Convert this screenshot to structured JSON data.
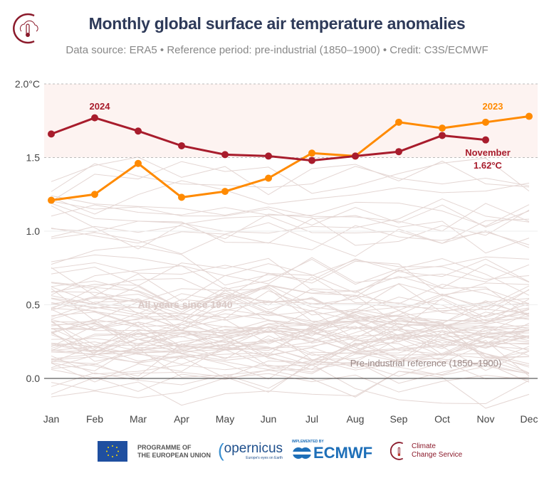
{
  "header": {
    "title": "Monthly global surface air temperature anomalies",
    "subtitle": "Data source: ERA5 • Reference period: pre-industrial (1850–1900) • Credit: C3S/ECMWF"
  },
  "chart_data": {
    "type": "line",
    "title": "Monthly global surface air temperature anomalies",
    "categories": [
      "Jan",
      "Feb",
      "Mar",
      "Apr",
      "May",
      "Jun",
      "Jul",
      "Aug",
      "Sep",
      "Oct",
      "Nov",
      "Dec"
    ],
    "yticks": [
      "0.0",
      "0.5",
      "1.0",
      "1.5",
      "2.0°C"
    ],
    "ylim": [
      -0.2,
      2.0
    ],
    "grid": true,
    "highlight_band": [
      1.5,
      2.0
    ],
    "series": [
      {
        "name": "2024",
        "color": "#a81c2c",
        "values": [
          1.66,
          1.77,
          1.68,
          1.58,
          1.52,
          1.51,
          1.48,
          1.51,
          1.54,
          1.65,
          1.62,
          null
        ]
      },
      {
        "name": "2023",
        "color": "#ff8a00",
        "values": [
          1.21,
          1.25,
          1.46,
          1.23,
          1.27,
          1.36,
          1.53,
          1.51,
          1.74,
          1.7,
          1.74,
          1.78
        ]
      }
    ],
    "annotations": {
      "background_years": "All years since 1940",
      "reference": "Pre-industrial reference (1850–1900)",
      "latest_month": "November",
      "latest_value": "1.62°C"
    }
  },
  "footer": {
    "eu_line1": "PROGRAMME OF",
    "eu_line2": "THE EUROPEAN UNION",
    "copernicus": "opernicus",
    "copernicus_tag": "Europe's eyes on Earth",
    "ecmwf_tag": "IMPLEMENTED BY",
    "ecmwf": "ECMWF",
    "c3s_line1": "Climate",
    "c3s_line2": "Change Service"
  }
}
